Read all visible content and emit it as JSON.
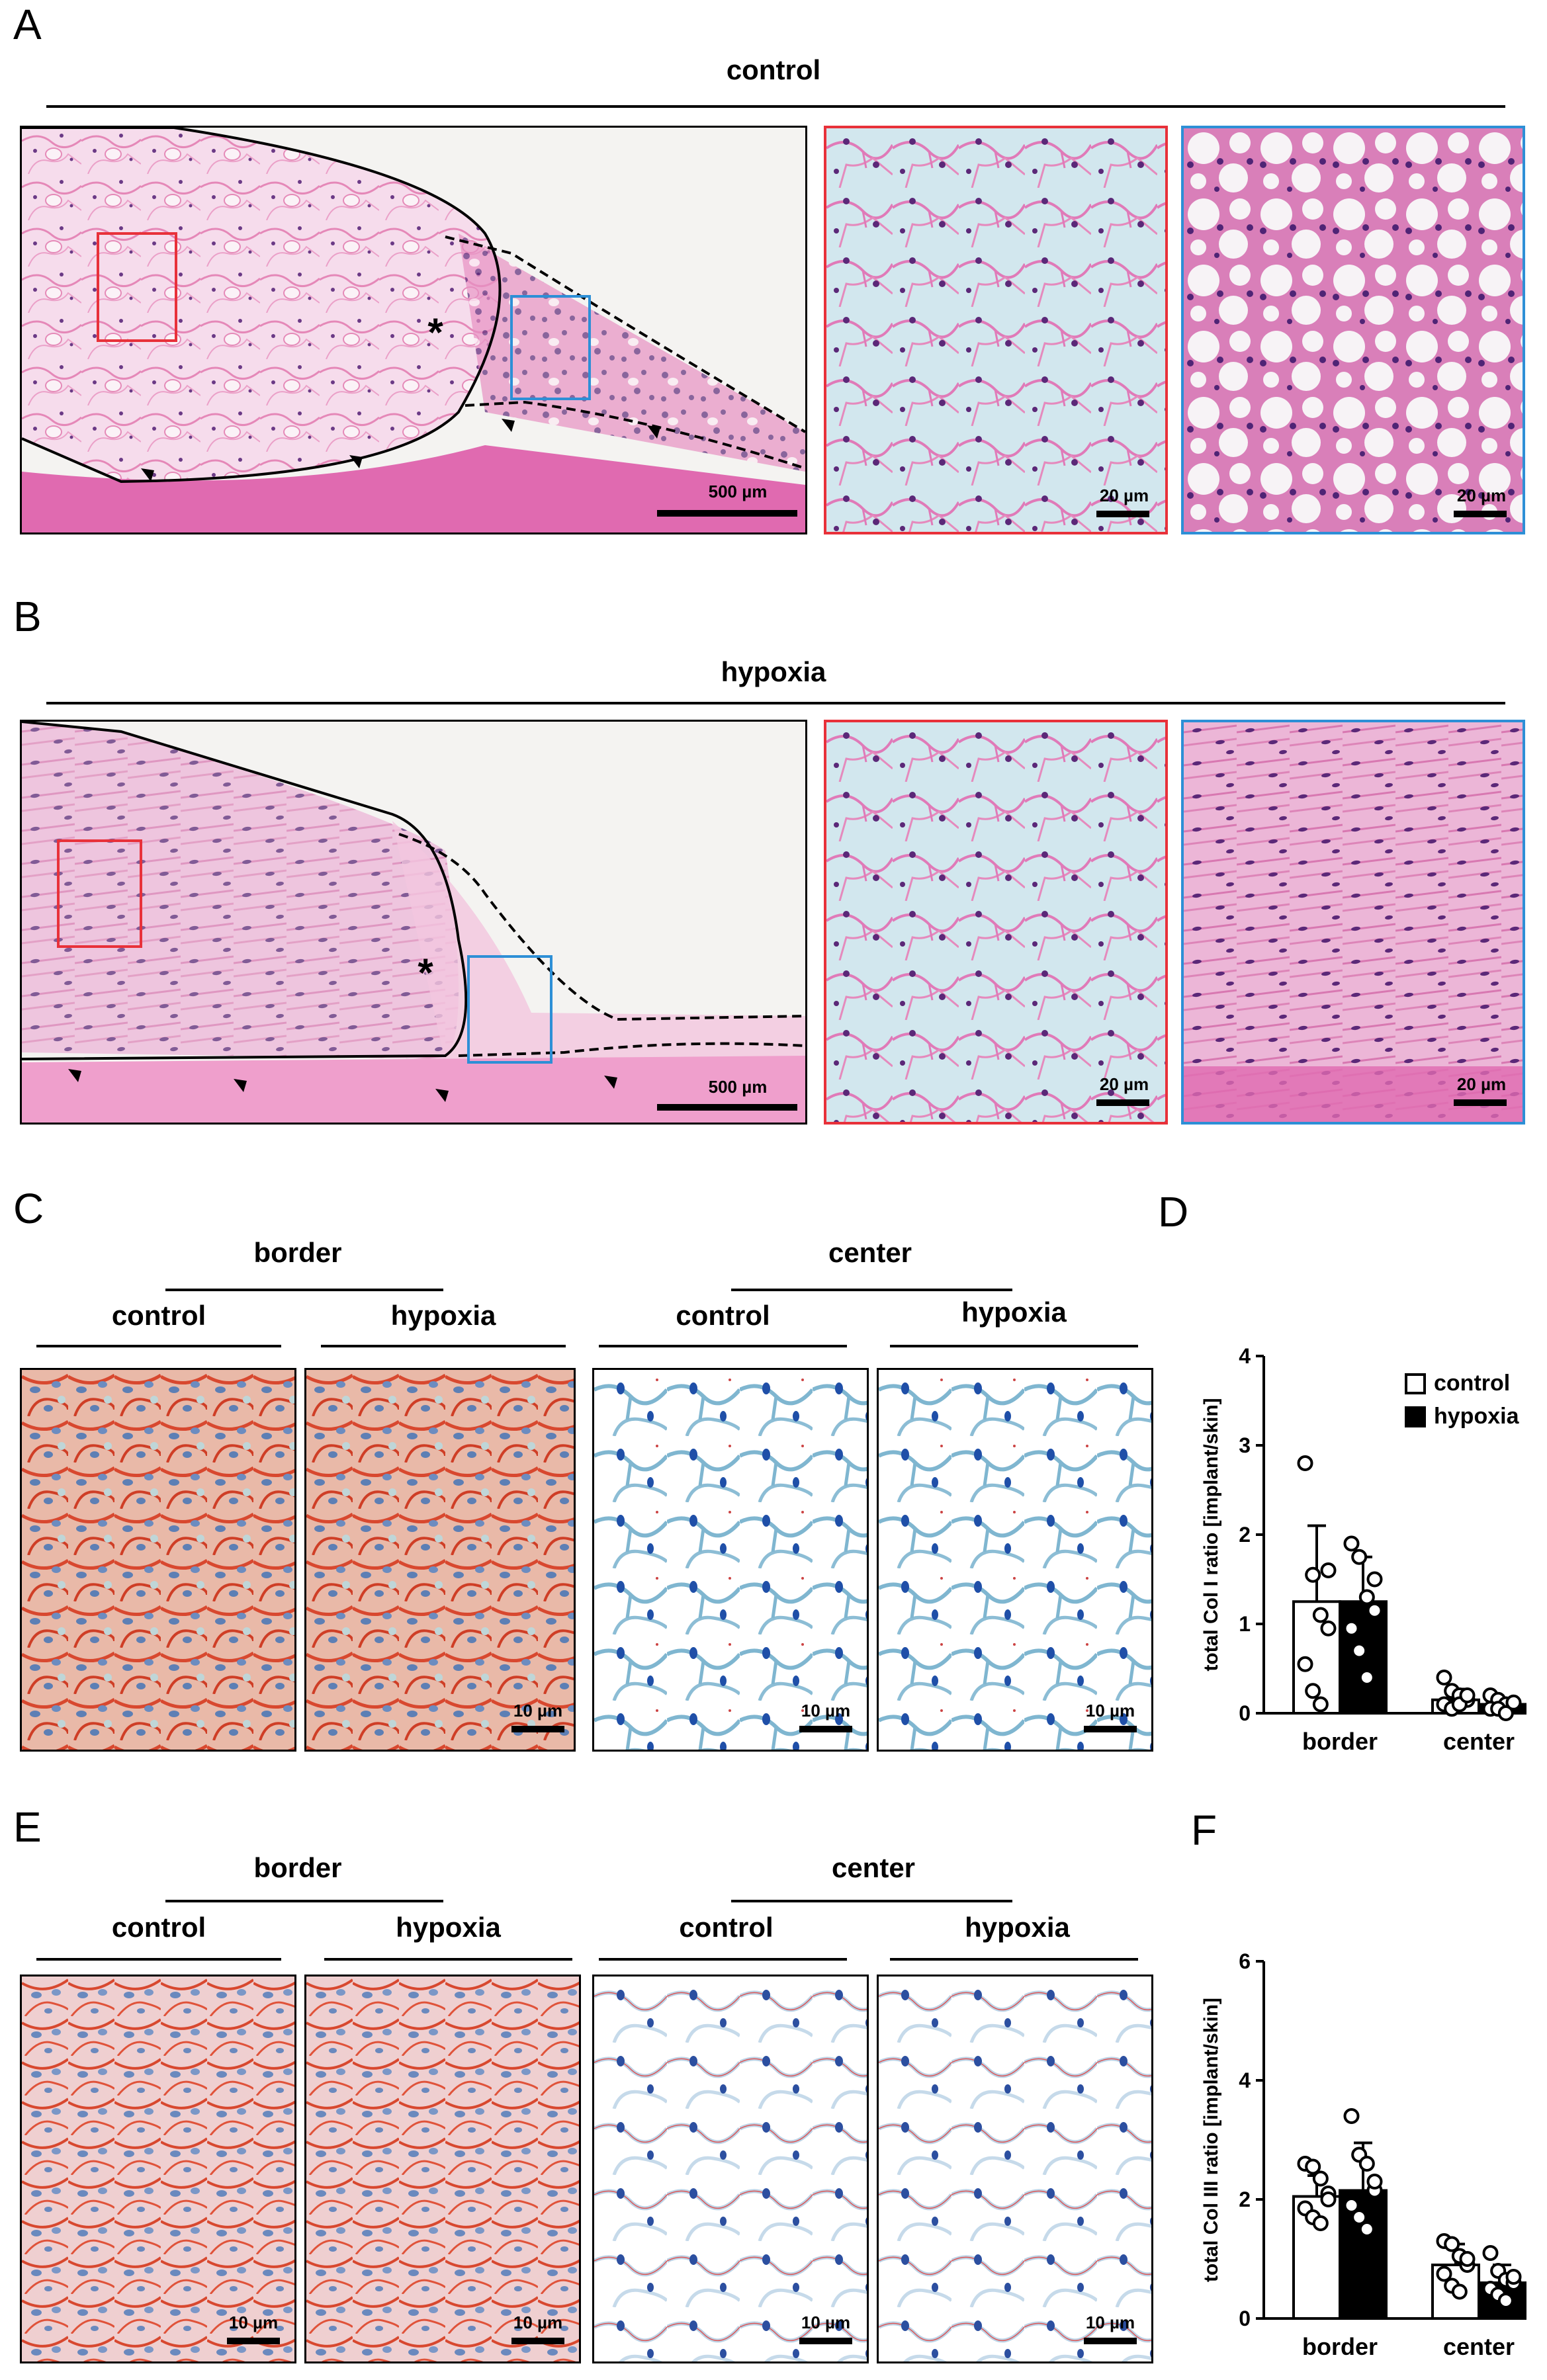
{
  "figure": {
    "panel_labels": [
      "A",
      "B",
      "C",
      "D",
      "E",
      "F"
    ],
    "panel_A": {
      "title": "control",
      "scalebars": [
        "500 µm",
        "20 µm",
        "20 µm"
      ]
    },
    "panel_B": {
      "title": "hypoxia",
      "scalebars": [
        "500 µm",
        "20 µm",
        "20 µm"
      ]
    },
    "panel_C": {
      "group_left": "border",
      "group_right": "center",
      "sub_labels": [
        "control",
        "hypoxia",
        "control",
        "hypoxia"
      ],
      "scalebars": [
        "10 µm",
        "10 µm",
        "10 µm"
      ]
    },
    "panel_E": {
      "group_left": "border",
      "group_right": "center",
      "sub_labels": [
        "control",
        "hypoxia",
        "control",
        "hypoxia"
      ],
      "scalebars": [
        "10 µm",
        "10 µm",
        "10 µm",
        "10 µm"
      ]
    },
    "colors": {
      "he_pink": "#e98fc0",
      "he_light": "#f8e6f1",
      "nuclei": "#5a2a7a",
      "red_box": "#e8313a",
      "blue_box": "#2d8fd6",
      "col_red": "#d8482f",
      "col_blue": "#6aa7c9",
      "black": "#000000"
    }
  },
  "chart_data": [
    {
      "panel": "D",
      "type": "bar",
      "categories": [
        "border",
        "center"
      ],
      "ylabel": "total Col I ratio [implant/skin]",
      "ylim": [
        0,
        4
      ],
      "yticks": [
        "0",
        "1",
        "2",
        "3",
        "4"
      ],
      "legend": [
        "control",
        "hypoxia"
      ],
      "legend_position": "top-right",
      "series": [
        {
          "name": "control",
          "fill": "#ffffff",
          "values": [
            1.25,
            0.15
          ],
          "errors": [
            0.85,
            0.12
          ],
          "points": [
            [
              2.8,
              1.55,
              1.1,
              0.95,
              0.55,
              0.25,
              0.1,
              1.6
            ],
            [
              0.4,
              0.25,
              0.2,
              0.15,
              0.1,
              0.05,
              0.1,
              0.2
            ]
          ]
        },
        {
          "name": "hypoxia",
          "fill": "#000000",
          "values": [
            1.25,
            0.1
          ],
          "errors": [
            0.5,
            0.07
          ],
          "points": [
            [
              1.9,
              1.75,
              1.3,
              1.15,
              0.95,
              0.7,
              0.4,
              1.5
            ],
            [
              0.2,
              0.15,
              0.1,
              0.1,
              0.05,
              0.05,
              0.0,
              0.12
            ]
          ]
        }
      ]
    },
    {
      "panel": "F",
      "type": "bar",
      "categories": [
        "border",
        "center"
      ],
      "ylabel": "total Col III ratio [implant/skin]",
      "ylim": [
        0,
        6
      ],
      "yticks": [
        "0",
        "2",
        "4",
        "6"
      ],
      "series": [
        {
          "name": "control",
          "fill": "#ffffff",
          "values": [
            2.05,
            0.9
          ],
          "errors": [
            0.35,
            0.35
          ],
          "points": [
            [
              2.6,
              2.55,
              2.35,
              2.1,
              1.85,
              1.7,
              1.6,
              2.0
            ],
            [
              1.3,
              1.25,
              1.05,
              0.9,
              0.75,
              0.55,
              0.45,
              1.0
            ]
          ]
        },
        {
          "name": "hypoxia",
          "fill": "#000000",
          "values": [
            2.15,
            0.6
          ],
          "errors": [
            0.8,
            0.3
          ],
          "points": [
            [
              3.4,
              2.75,
              2.6,
              2.15,
              1.9,
              1.7,
              1.5,
              2.3
            ],
            [
              1.1,
              0.8,
              0.65,
              0.6,
              0.5,
              0.4,
              0.3,
              0.7
            ]
          ]
        }
      ]
    }
  ]
}
